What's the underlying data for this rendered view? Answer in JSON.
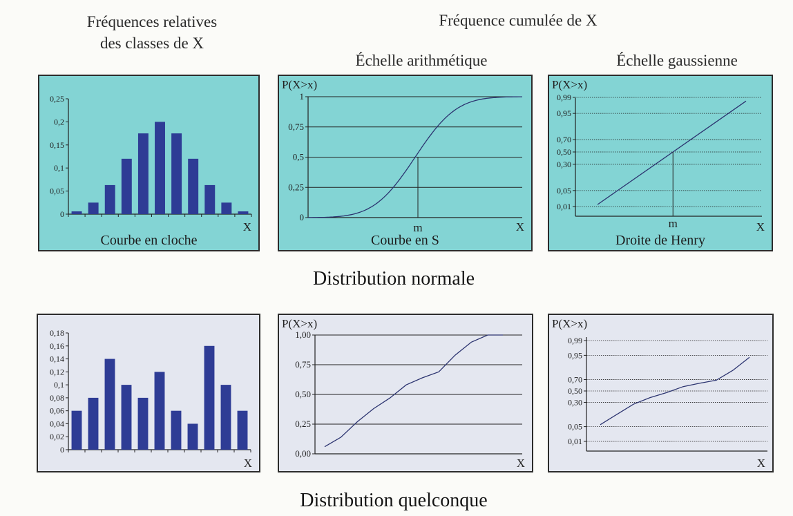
{
  "headers": {
    "freq_rel": "Fréquences relatives\ndes classes de X",
    "freq_cum": "Fréquence cumulée de X",
    "arith": "Échelle arithmétique",
    "gauss": "Échelle gaussienne"
  },
  "sections": {
    "normal": "Distribution normale",
    "quelconque": "Distribution quelconque"
  },
  "colors": {
    "panel_normal": "#83d4d4",
    "panel_quelconque": "#e4e7f0",
    "bar": "#2e3c95",
    "line": "#2c3470"
  },
  "chart_data": [
    {
      "id": "p1",
      "type": "bar",
      "ylim": [
        0,
        0.25
      ],
      "yticks": [
        0,
        0.05,
        0.1,
        0.15,
        0.2,
        0.25
      ],
      "ytick_labels": [
        "0",
        "0,05",
        "0,1",
        "0,15",
        "0,2",
        "0,25"
      ],
      "values": [
        0.006,
        0.025,
        0.063,
        0.12,
        0.175,
        0.2,
        0.175,
        0.12,
        0.063,
        0.025,
        0.006
      ],
      "xlabel": "X",
      "caption": "Courbe en cloche",
      "grid": false
    },
    {
      "id": "p2",
      "type": "line",
      "ylabel": "P(X>x)",
      "ylim": [
        0,
        1
      ],
      "yticks": [
        0,
        0.25,
        0.5,
        0.75,
        1
      ],
      "ytick_labels": [
        "0",
        "0,25",
        "0,5",
        "0,75",
        "1"
      ],
      "mean_label": "m",
      "mean_y": 0.5,
      "xlabel": "X",
      "caption": "Courbe en S",
      "grid": true
    },
    {
      "id": "p3",
      "type": "line",
      "ylabel": "P(X>x)",
      "scale": "probit",
      "yticks": [
        0.01,
        0.05,
        0.3,
        0.5,
        0.7,
        0.95,
        0.99
      ],
      "ytick_labels": [
        "0,01",
        "0,05",
        "0,30",
        "0,50",
        "0,70",
        "0,95",
        "0,99"
      ],
      "mean_label": "m",
      "xlabel": "X",
      "caption": "Droite de Henry",
      "grid": true
    },
    {
      "id": "p4",
      "type": "bar",
      "ylim": [
        0,
        0.18
      ],
      "yticks": [
        0,
        0.02,
        0.04,
        0.06,
        0.08,
        0.1,
        0.12,
        0.14,
        0.16,
        0.18
      ],
      "ytick_labels": [
        "0",
        "0,02",
        "0,04",
        "0,06",
        "0,08",
        "0,1",
        "0,12",
        "0,14",
        "0,16",
        "0,18"
      ],
      "values": [
        0.06,
        0.08,
        0.14,
        0.1,
        0.08,
        0.12,
        0.06,
        0.04,
        0.16,
        0.1,
        0.06
      ],
      "xlabel": "X",
      "grid": false
    },
    {
      "id": "p5",
      "type": "line",
      "ylabel": "P(X>x)",
      "ylim": [
        0,
        1
      ],
      "yticks": [
        0,
        0.25,
        0.5,
        0.75,
        1
      ],
      "ytick_labels": [
        "0,00",
        "0,25",
        "0,50",
        "0,75",
        "1,00"
      ],
      "values": [
        0.06,
        0.14,
        0.27,
        0.38,
        0.47,
        0.58,
        0.64,
        0.69,
        0.83,
        0.94,
        1.0
      ],
      "xlabel": "X",
      "grid": true
    },
    {
      "id": "p6",
      "type": "line",
      "ylabel": "P(X>x)",
      "scale": "probit",
      "yticks": [
        0.01,
        0.05,
        0.3,
        0.5,
        0.7,
        0.95,
        0.99
      ],
      "ytick_labels": [
        "0,01",
        "0,05",
        "0,30",
        "0,50",
        "0,70",
        "0,95",
        "0,99"
      ],
      "values": [
        0.06,
        0.14,
        0.27,
        0.38,
        0.47,
        0.58,
        0.64,
        0.69,
        0.83,
        0.94
      ],
      "xlabel": "X",
      "grid": true
    }
  ]
}
